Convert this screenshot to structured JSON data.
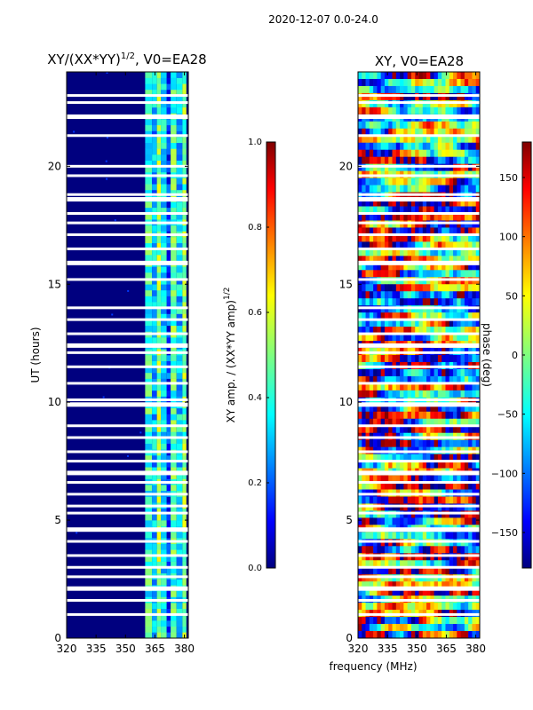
{
  "suptitle": "2020-12-07 0.0-24.0",
  "figure_xlabel": "frequency (MHz)",
  "chart_data": [
    {
      "type": "heatmap",
      "title_base": "XY/(XX*YY)",
      "title_exp": "1/2",
      "title_suffix": ", V0=EA28",
      "ylabel": "UT (hours)",
      "xlim": [
        320,
        382
      ],
      "ylim": [
        0,
        24
      ],
      "xticks": [
        320,
        335,
        350,
        365,
        380
      ],
      "yticks": [
        0,
        5,
        10,
        15,
        20
      ],
      "colorbar": {
        "label_base": "XY amp. / (XX*YY amp)",
        "label_exp": "1/2",
        "range": [
          0.0,
          1.0
        ],
        "ticks": [
          "0.0",
          "0.2",
          "0.4",
          "0.6",
          "0.8",
          "1.0"
        ],
        "colormap": "jet"
      },
      "value_description": "low amplitude (~0.05) below 360 MHz, elevated (~0.3-0.55) between 360 and 382 MHz"
    },
    {
      "type": "heatmap",
      "title": "XY, V0=EA28",
      "xlim": [
        320,
        382
      ],
      "ylim": [
        0,
        24
      ],
      "xticks": [
        320,
        335,
        350,
        365,
        380
      ],
      "yticks": [
        0,
        5,
        10,
        15,
        20
      ],
      "colorbar": {
        "label": "phase (deg)",
        "range": [
          -180,
          180
        ],
        "ticks": [
          "150",
          "100",
          "50",
          "0",
          "−50",
          "−100",
          "−150"
        ],
        "tick_values": [
          150,
          100,
          50,
          0,
          -50,
          -100,
          -150
        ],
        "colormap": "jet"
      },
      "value_description": "phase noise spanning -180 to 180 deg"
    }
  ],
  "flagged_ut_hours": [
    1.0,
    1.6,
    2.1,
    2.6,
    3.0,
    3.5,
    4.1,
    4.6,
    5.3,
    5.6,
    6.1,
    6.6,
    7.0,
    7.5,
    7.9,
    8.5,
    9.0,
    9.9,
    10.1,
    10.8,
    11.5,
    12.1,
    12.4,
    12.9,
    13.5,
    14.0,
    15.2,
    15.9,
    16.5,
    17.1,
    17.6,
    18.0,
    18.6,
    18.8,
    19.6,
    20.0,
    21.3,
    22.1,
    22.7,
    23.0
  ]
}
